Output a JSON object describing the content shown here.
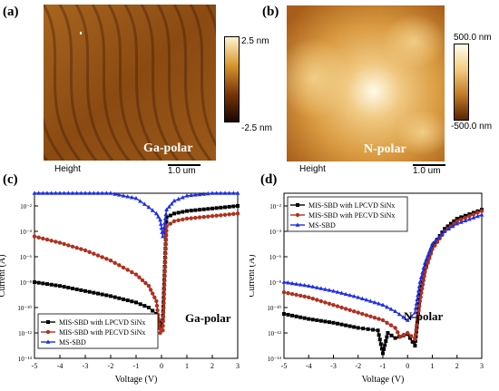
{
  "panels": {
    "a": {
      "letter": "(a)",
      "sample_label": "Ga-polar",
      "height_label": "Height",
      "scale_label": "1.0 um",
      "cbar_max": "2.5 nm",
      "cbar_min": "-2.5 nm",
      "colors": {
        "dark": "#2a0d00",
        "mid": "#8a4a10",
        "light": "#c88a30"
      }
    },
    "b": {
      "letter": "(b)",
      "sample_label": "N-polar",
      "height_label": "Height",
      "scale_label": "1.0 um",
      "cbar_max": "500.0 nm",
      "cbar_min": "-500.0 nm",
      "colors": {
        "dark": "#6b3000",
        "mid": "#c98a35",
        "light": "#fff6d8"
      }
    }
  },
  "chart_data": [
    {
      "panel": "(c)",
      "type": "line",
      "annotation": "Ga-polar",
      "xlabel": "Voltage (V)",
      "ylabel": "Current (A)",
      "xlim": [
        -5,
        3
      ],
      "ylim_exp": [
        -14,
        -1
      ],
      "ylog": true,
      "xticks": [
        "-5",
        "-4",
        "-3",
        "-2",
        "-1",
        "0",
        "1",
        "2",
        "3"
      ],
      "yticks": [
        "10⁻¹⁴",
        "10⁻¹²",
        "10⁻¹⁰",
        "10⁻⁸",
        "10⁻⁶",
        "10⁻⁴",
        "10⁻²"
      ],
      "legend_position": "bottom-left",
      "series": [
        {
          "name": "MIS-SBD with LPCVD SiNx",
          "color": "#000000",
          "marker": "square",
          "x": [
            -5,
            -4,
            -3,
            -2,
            -1,
            -0.5,
            -0.2,
            -0.05,
            0.05,
            0.2,
            0.5,
            1,
            2,
            3
          ],
          "logy": [
            -8.0,
            -8.3,
            -8.7,
            -9.1,
            -9.6,
            -10.0,
            -10.5,
            -11.5,
            -11.0,
            -2.9,
            -2.6,
            -2.4,
            -2.2,
            -2.0
          ]
        },
        {
          "name": "MIS-SBD with PECVD SiNx",
          "color": "#b0301f",
          "marker": "circle",
          "x": [
            -5,
            -4,
            -3,
            -2,
            -1,
            -0.5,
            -0.2,
            -0.05,
            0.05,
            0.2,
            0.5,
            1,
            2,
            3
          ],
          "logy": [
            -4.4,
            -4.9,
            -5.5,
            -6.3,
            -7.4,
            -8.3,
            -9.5,
            -12.0,
            -11.8,
            -3.6,
            -3.2,
            -3.0,
            -2.8,
            -2.6
          ]
        },
        {
          "name": "MS-SBD",
          "color": "#1f2fe0",
          "marker": "triangle",
          "x": [
            -5,
            -4,
            -3,
            -2,
            -1,
            -0.5,
            -0.2,
            -0.05,
            0.05,
            0.2,
            0.5,
            1,
            2,
            3
          ],
          "logy": [
            -1.0,
            -1.0,
            -1.0,
            -1.0,
            -1.4,
            -2.1,
            -2.6,
            -3.1,
            -4.4,
            -2.3,
            -1.6,
            -1.2,
            -1.0,
            -1.0
          ]
        }
      ]
    },
    {
      "panel": "(d)",
      "type": "line",
      "annotation": "N-polar",
      "xlabel": "Voltage (V)",
      "ylabel": "Current (A)",
      "xlim": [
        -5,
        3
      ],
      "ylim_exp": [
        -14,
        -1
      ],
      "ylog": true,
      "xticks": [
        "-5",
        "-4",
        "-3",
        "-2",
        "-1",
        "0",
        "1",
        "2",
        "3"
      ],
      "yticks": [
        "10⁻¹⁴",
        "10⁻¹²",
        "10⁻¹⁰",
        "10⁻⁸",
        "10⁻⁶",
        "10⁻⁴",
        "10⁻²"
      ],
      "legend_position": "top-left",
      "series": [
        {
          "name": "MIS-SBD with LPCVD SiNx",
          "color": "#000000",
          "marker": "square",
          "x": [
            -5,
            -4,
            -3,
            -2,
            -1.2,
            -1.0,
            -0.8,
            -0.5,
            0,
            0.3,
            0.5,
            0.7,
            1,
            1.5,
            2,
            3
          ],
          "logy": [
            -10.5,
            -10.9,
            -11.2,
            -11.6,
            -11.8,
            -13.6,
            -12.0,
            -12.4,
            -12.1,
            -13.0,
            -9.0,
            -7.0,
            -5.2,
            -3.8,
            -3.0,
            -2.3
          ]
        },
        {
          "name": "MIS-SBD with PECVD SiNx",
          "color": "#b0301f",
          "marker": "circle",
          "x": [
            -5,
            -4,
            -3,
            -2,
            -1,
            -0.5,
            -0.3,
            0,
            0.3,
            0.5,
            0.7,
            1,
            1.5,
            2,
            3
          ],
          "logy": [
            -8.8,
            -9.2,
            -9.8,
            -10.4,
            -11.0,
            -11.6,
            -12.3,
            -12.0,
            -12.5,
            -9.5,
            -7.2,
            -5.4,
            -4.0,
            -3.2,
            -2.4
          ]
        },
        {
          "name": "MS-SBD",
          "color": "#1f2fe0",
          "marker": "triangle",
          "x": [
            -5,
            -4,
            -3,
            -2,
            -1,
            -0.5,
            0,
            0.3,
            0.5,
            0.7,
            1,
            1.5,
            2,
            3
          ],
          "logy": [
            -8.0,
            -8.3,
            -8.7,
            -9.2,
            -9.8,
            -10.3,
            -11.0,
            -10.4,
            -8.0,
            -6.5,
            -5.0,
            -4.0,
            -3.4,
            -2.7
          ]
        }
      ]
    }
  ]
}
